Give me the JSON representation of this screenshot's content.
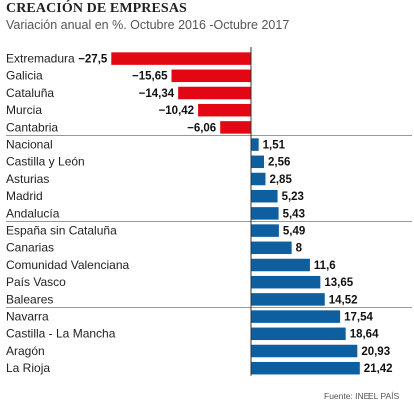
{
  "chart_data": {
    "type": "bar",
    "orientation": "horizontal",
    "title": "CREACIÓN DE EMPRESAS",
    "subtitle": "Variación anual en %. Octubre 2016 -Octubre 2017",
    "categories": [
      "Extremadura",
      "Galicia",
      "Cataluña",
      "Murcia",
      "Cantabria",
      "Nacional",
      "Castilla y León",
      "Asturias",
      "Madrid",
      "Andalucía",
      "España sin Cataluña",
      "Canarias",
      "Comunidad Valenciana",
      "País Vasco",
      "Baleares",
      "Navarra",
      "Castilla - La Mancha",
      "Aragón",
      "La Rioja"
    ],
    "values": [
      -27.5,
      -15.65,
      -14.34,
      -10.42,
      -6.06,
      1.51,
      2.56,
      2.85,
      5.23,
      5.43,
      5.49,
      8,
      11.6,
      13.65,
      14.52,
      17.54,
      18.64,
      20.93,
      21.42
    ],
    "value_labels": [
      "−27,5",
      "−15,65",
      "−14,34",
      "−10,42",
      "−6,06",
      "1,51",
      "2,56",
      "2,85",
      "5,23",
      "5,43",
      "5,49",
      "8",
      "11,6",
      "13,65",
      "14,52",
      "17,54",
      "18,64",
      "20,93",
      "21,42"
    ],
    "group_sizes": [
      5,
      5,
      5,
      4
    ],
    "colors": {
      "negative": "#e30613",
      "positive": "#0d5fa0",
      "divider": "#999999",
      "axis": "#333333"
    },
    "xlim": [
      -27.5,
      21.42
    ],
    "grid": false,
    "legend": "none"
  },
  "footer": {
    "source": "Fuente: INE.",
    "brand": "EL PAÍS"
  }
}
